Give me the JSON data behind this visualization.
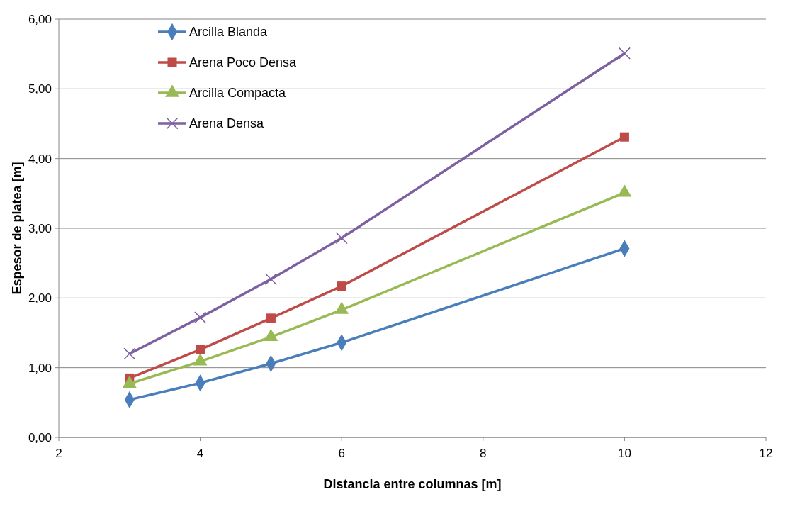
{
  "chart_data": {
    "type": "line",
    "xlabel": "Distancia entre columnas [m]",
    "ylabel": "Espesor de platea [m]",
    "x": [
      3,
      4,
      5,
      6,
      10
    ],
    "series": [
      {
        "name": "Arcilla Blanda",
        "color": "#4a7ebb",
        "marker": "diamond",
        "values": [
          0.54,
          0.78,
          1.06,
          1.36,
          2.71
        ]
      },
      {
        "name": "Arena Poco Densa",
        "color": "#be4b48",
        "marker": "square",
        "values": [
          0.85,
          1.26,
          1.71,
          2.17,
          4.31
        ]
      },
      {
        "name": "Arcilla Compacta",
        "color": "#98b954",
        "marker": "triangle",
        "values": [
          0.77,
          1.09,
          1.44,
          1.83,
          3.51
        ]
      },
      {
        "name": "Arena Densa",
        "color": "#7d60a0",
        "marker": "cross",
        "values": [
          1.2,
          1.72,
          2.27,
          2.86,
          5.51
        ]
      }
    ],
    "xlim": [
      2,
      12
    ],
    "xticks": [
      2,
      4,
      6,
      8,
      10,
      12
    ],
    "ylim": [
      0,
      6
    ],
    "yticks": [
      {
        "value": 0,
        "label": "0,00"
      },
      {
        "value": 1,
        "label": "1,00"
      },
      {
        "value": 2,
        "label": "2,00"
      },
      {
        "value": 3,
        "label": "3,00"
      },
      {
        "value": 4,
        "label": "4,00"
      },
      {
        "value": 5,
        "label": "5,00"
      },
      {
        "value": 6,
        "label": "6,00"
      }
    ],
    "grid": "y",
    "legend": "top left",
    "line_style": "solid"
  }
}
